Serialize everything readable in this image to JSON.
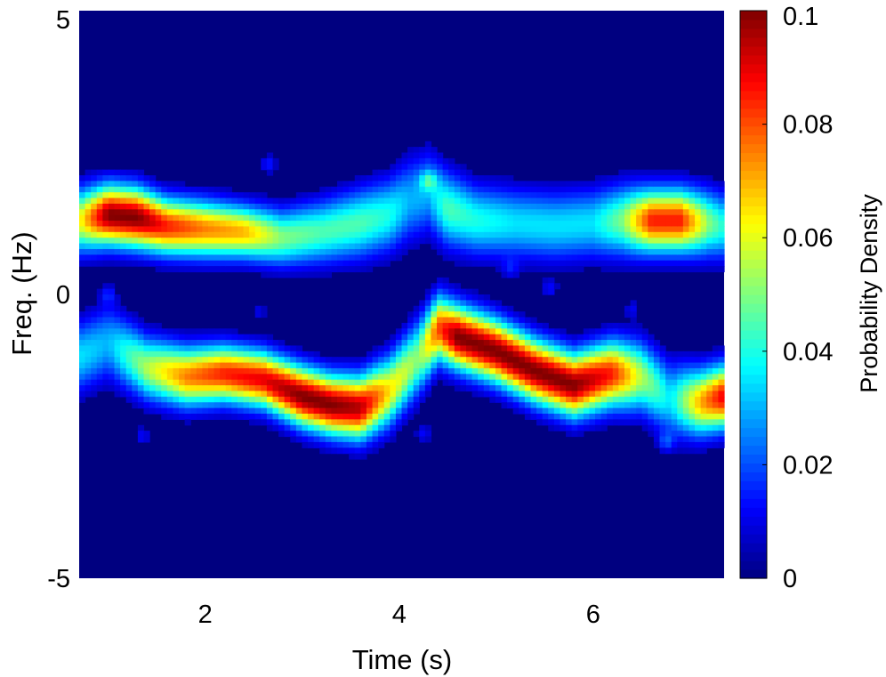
{
  "chart_data": {
    "type": "heatmap",
    "xlabel": "Time (s)",
    "ylabel": "Freq. (Hz)",
    "xlim": [
      0.7,
      7.35
    ],
    "ylim": [
      -5,
      5
    ],
    "xticks": [
      2,
      4,
      6
    ],
    "xtick_labels": [
      "2",
      "4",
      "6"
    ],
    "yticks": [
      -5,
      0,
      5
    ],
    "ytick_labels": [
      "-5",
      "0",
      "5"
    ],
    "colorbar": {
      "label": "Probability Density",
      "range": [
        0,
        0.1
      ],
      "ticks": [
        0,
        0.02,
        0.04,
        0.06,
        0.08,
        0.1
      ],
      "tick_labels": [
        "0",
        "0.02",
        "0.04",
        "0.06",
        "0.08",
        "0.1"
      ],
      "colormap": "jet"
    },
    "grid": false,
    "ridges": [
      {
        "time": [
          0.7,
          1.0,
          1.3,
          1.6,
          2.0,
          2.4,
          2.8,
          3.2,
          3.6,
          3.9,
          4.1,
          4.3,
          4.5,
          4.8,
          5.2,
          5.6,
          6.0,
          6.3,
          6.6,
          6.9,
          7.2,
          7.35
        ],
        "freq": [
          1.3,
          1.4,
          1.35,
          1.2,
          1.15,
          1.1,
          1.0,
          1.1,
          1.25,
          1.4,
          1.65,
          1.8,
          1.5,
          1.3,
          1.25,
          1.2,
          1.25,
          1.3,
          1.3,
          1.3,
          1.25,
          1.2
        ],
        "density": [
          0.06,
          0.1,
          0.1,
          0.085,
          0.075,
          0.07,
          0.05,
          0.045,
          0.045,
          0.04,
          0.03,
          0.03,
          0.045,
          0.04,
          0.035,
          0.035,
          0.035,
          0.05,
          0.085,
          0.085,
          0.05,
          0.04
        ],
        "width": [
          0.38,
          0.36,
          0.36,
          0.34,
          0.34,
          0.32,
          0.34,
          0.38,
          0.42,
          0.44,
          0.5,
          0.5,
          0.45,
          0.42,
          0.42,
          0.42,
          0.42,
          0.42,
          0.38,
          0.38,
          0.4,
          0.4
        ]
      },
      {
        "time": [
          0.7,
          1.0,
          1.4,
          1.8,
          2.2,
          2.6,
          3.0,
          3.3,
          3.6,
          3.9,
          4.2,
          4.4,
          4.6,
          5.0,
          5.4,
          5.8,
          6.2,
          6.5,
          6.8,
          7.1,
          7.35
        ],
        "freq": [
          -1.1,
          -0.85,
          -1.3,
          -1.45,
          -1.4,
          -1.5,
          -1.8,
          -1.95,
          -2.0,
          -1.7,
          -1.1,
          -0.6,
          -0.75,
          -1.0,
          -1.35,
          -1.6,
          -1.4,
          -1.45,
          -1.85,
          -1.9,
          -1.8
        ],
        "density": [
          0.035,
          0.03,
          0.055,
          0.075,
          0.085,
          0.09,
          0.1,
          0.1,
          0.095,
          0.065,
          0.05,
          0.08,
          0.1,
          0.1,
          0.1,
          0.1,
          0.085,
          0.055,
          0.035,
          0.07,
          0.09
        ],
        "width": [
          0.42,
          0.45,
          0.38,
          0.36,
          0.34,
          0.34,
          0.36,
          0.36,
          0.38,
          0.42,
          0.45,
          0.4,
          0.38,
          0.38,
          0.38,
          0.38,
          0.4,
          0.42,
          0.45,
          0.4,
          0.38
        ]
      }
    ],
    "speckles": [
      {
        "time": 2.65,
        "freq": 2.3,
        "density": 0.015
      },
      {
        "time": 1.0,
        "freq": 0.0,
        "density": 0.012
      },
      {
        "time": 2.55,
        "freq": -0.3,
        "density": 0.01
      },
      {
        "time": 5.55,
        "freq": 0.1,
        "density": 0.012
      },
      {
        "time": 6.4,
        "freq": -0.25,
        "density": 0.01
      },
      {
        "time": 5.15,
        "freq": 0.45,
        "density": 0.01
      },
      {
        "time": 6.75,
        "freq": -2.6,
        "density": 0.015
      },
      {
        "time": 1.35,
        "freq": -2.5,
        "density": 0.012
      },
      {
        "time": 4.25,
        "freq": -2.45,
        "density": 0.012
      },
      {
        "time": 4.3,
        "freq": 2.0,
        "density": 0.02
      }
    ]
  }
}
